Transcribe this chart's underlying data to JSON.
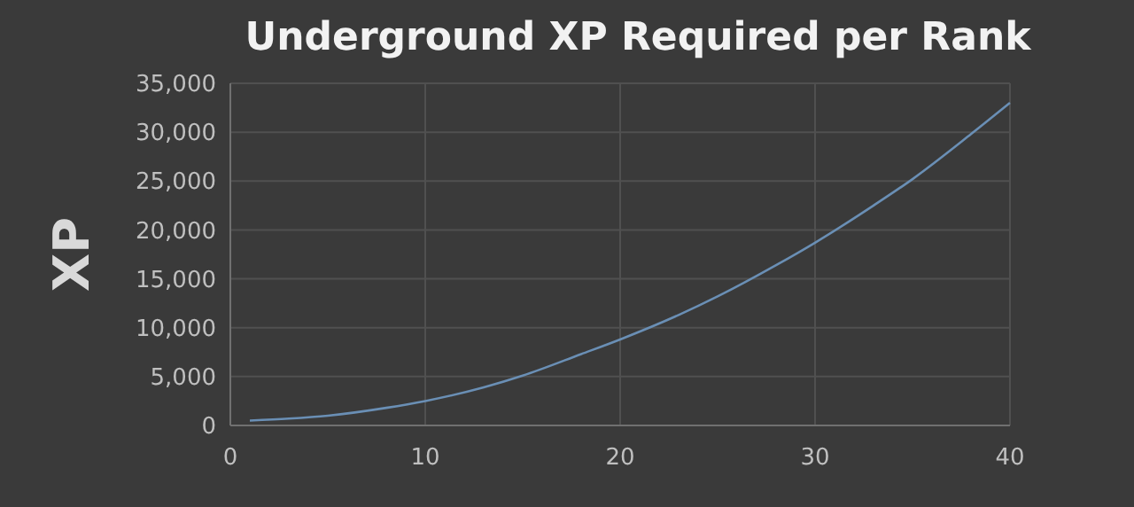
{
  "chart_data": {
    "type": "line",
    "title": "Underground XP Required per Rank",
    "ylabel": "XP",
    "series": [
      {
        "color": "#6a8fb5",
        "x": [
          1,
          3,
          5,
          8,
          10,
          13,
          15,
          18,
          20,
          23,
          25,
          28,
          30,
          33,
          35,
          38,
          40
        ],
        "values": [
          500,
          700,
          1000,
          1800,
          2500,
          3900,
          5100,
          7300,
          8800,
          11300,
          13200,
          16400,
          18700,
          22500,
          25200,
          29800,
          33000
        ]
      }
    ],
    "xlim": [
      0,
      40
    ],
    "xticks": [
      0,
      10,
      20,
      30,
      40
    ],
    "ylim": [
      0,
      35000
    ],
    "yticks": [
      {
        "value": 0,
        "label": "0"
      },
      {
        "value": 5000,
        "label": "5,000"
      },
      {
        "value": 10000,
        "label": "10,000"
      },
      {
        "value": 15000,
        "label": "15,000"
      },
      {
        "value": 20000,
        "label": "20,000"
      },
      {
        "value": 25000,
        "label": "25,000"
      },
      {
        "value": 30000,
        "label": "30,000"
      },
      {
        "value": 35000,
        "label": "35,000"
      }
    ],
    "grid": true,
    "marker": "none",
    "line_style": "solid"
  }
}
